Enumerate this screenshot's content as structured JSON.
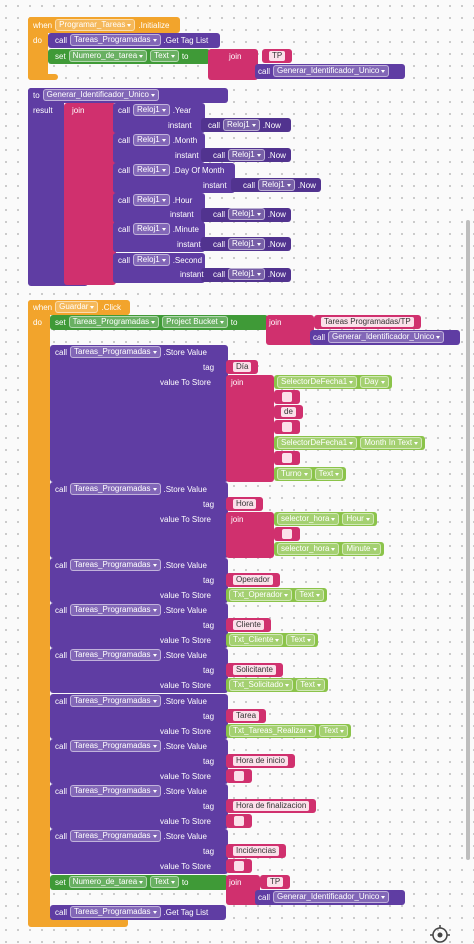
{
  "rows": [
    [
      "when",
      "Programar_Tareas",
      ".Initialize"
    ],
    [
      "do"
    ],
    [
      "call",
      "Tareas_Programadas",
      ".Get Tag List"
    ],
    [
      "set",
      "Numero_de_tarea",
      "Text",
      "to"
    ],
    [
      "join"
    ],
    [
      "TP"
    ],
    [
      "call",
      "Generar_Identificador_Unico"
    ],
    [
      "to",
      "Generar_Identificador_Unico"
    ],
    [
      "result"
    ],
    [
      "join"
    ],
    [
      "call",
      "Reloj1",
      ".Year"
    ],
    [
      "instant"
    ],
    [
      "call",
      "Reloj1",
      ".Now"
    ],
    [
      "call",
      "Reloj1",
      ".Month"
    ],
    [
      "instant"
    ],
    [
      "call",
      "Reloj1",
      ".Now"
    ],
    [
      "call",
      "Reloj1",
      ".Day Of Month"
    ],
    [
      "instant"
    ],
    [
      "call",
      "Reloj1",
      ".Now"
    ],
    [
      "call",
      "Reloj1",
      ".Hour"
    ],
    [
      "instant"
    ],
    [
      "call",
      "Reloj1",
      ".Now"
    ],
    [
      "call",
      "Reloj1",
      ".Minute"
    ],
    [
      "instant"
    ],
    [
      "call",
      "Reloj1",
      ".Now"
    ],
    [
      "call",
      "Reloj1",
      ".Second"
    ],
    [
      "instant"
    ],
    [
      "call",
      "Reloj1",
      ".Now"
    ],
    [
      "when",
      "Guardar",
      ".Click"
    ],
    [
      "do"
    ],
    [
      "set",
      "Tareas_Programadas",
      "Project Bucket",
      "to"
    ],
    [
      "join"
    ],
    [
      "Tareas Programadas/TP"
    ],
    [
      "call",
      "Generar_Identificador_Unico"
    ],
    [
      "call",
      "Tareas_Programadas",
      ".Store Value"
    ],
    [
      "tag"
    ],
    [
      "Día"
    ],
    [
      "value To Store"
    ],
    [
      "join"
    ],
    [
      "SelectorDeFecha1",
      "Day"
    ],
    [
      "de"
    ],
    [
      "SelectorDeFecha1",
      "Month In Text"
    ],
    [
      "Turno",
      "Text"
    ],
    [
      "call",
      "Tareas_Programadas",
      ".Store Value"
    ],
    [
      "tag"
    ],
    [
      "Hora"
    ],
    [
      "value To Store"
    ],
    [
      "join"
    ],
    [
      "selector_hora",
      "Hour"
    ],
    [
      "selector_hora",
      "Minute"
    ],
    [
      "call",
      "Tareas_Programadas",
      ".Store Value"
    ],
    [
      "tag"
    ],
    [
      "Operador"
    ],
    [
      "value To Store"
    ],
    [
      "Txt_Operador",
      "Text"
    ],
    [
      "call",
      "Tareas_Programadas",
      ".Store Value"
    ],
    [
      "tag"
    ],
    [
      "Cliente"
    ],
    [
      "value To Store"
    ],
    [
      "Txt_Cliente",
      "Text"
    ],
    [
      "call",
      "Tareas_Programadas",
      ".Store Value"
    ],
    [
      "tag"
    ],
    [
      "Solicitante"
    ],
    [
      "value To Store"
    ],
    [
      "Txt_Solicitado",
      "Text"
    ],
    [
      "call",
      "Tareas_Programadas",
      ".Store Value"
    ],
    [
      "tag"
    ],
    [
      "Tarea"
    ],
    [
      "value To Store"
    ],
    [
      "Txt_Tareas_Realizar",
      "Text"
    ],
    [
      "call",
      "Tareas_Programadas",
      ".Store Value"
    ],
    [
      "tag"
    ],
    [
      "Hora de inicio"
    ],
    [
      "value To Store"
    ],
    [
      "call",
      "Tareas_Programadas",
      ".Store Value"
    ],
    [
      "tag"
    ],
    [
      "Hora de finalizacion"
    ],
    [
      "value To Store"
    ],
    [
      "call",
      "Tareas_Programadas",
      ".Store Value"
    ],
    [
      "tag"
    ],
    [
      "Incidencias"
    ],
    [
      "value To Store"
    ],
    [
      "set",
      "Numero_de_tarea",
      "Text",
      "to"
    ],
    [
      "join"
    ],
    [
      "TP"
    ],
    [
      "call",
      "Generar_Identificador_Unico"
    ],
    [
      "call",
      "Tareas_Programadas",
      ".Get Tag List"
    ]
  ]
}
